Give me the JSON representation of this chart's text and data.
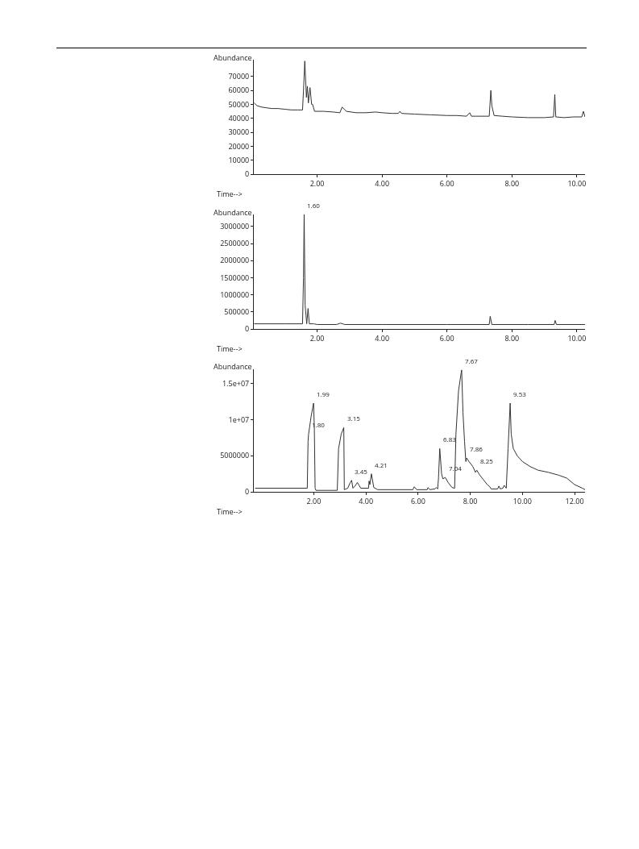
{
  "chart_data": [
    {
      "type": "line",
      "ylabel": "Abundance",
      "xlabel": "Time-->",
      "grid": false,
      "marker": "none",
      "line_style": "solid",
      "xlim": [
        0.05,
        10.25
      ],
      "ylim": [
        0,
        82000
      ],
      "xticks": [
        {
          "value": 2,
          "label": "2.00"
        },
        {
          "value": 4,
          "label": "4.00"
        },
        {
          "value": 6,
          "label": "6.00"
        },
        {
          "value": 8,
          "label": "8.00"
        },
        {
          "value": 10,
          "label": "10.00"
        }
      ],
      "yticks": [
        0,
        10000,
        20000,
        30000,
        40000,
        50000,
        60000,
        70000
      ],
      "series": [
        {
          "color": "#333333",
          "x": [
            0.06,
            0.15,
            0.3,
            0.45,
            0.6,
            0.8,
            1.0,
            1.2,
            1.4,
            1.55,
            1.58,
            1.62,
            1.67,
            1.7,
            1.73,
            1.78,
            1.83,
            1.86,
            1.92,
            2.2,
            2.5,
            2.7,
            2.77,
            2.9,
            3.2,
            3.5,
            3.8,
            4.0,
            4.3,
            4.5,
            4.55,
            4.6,
            5.0,
            5.5,
            6.0,
            6.3,
            6.6,
            6.7,
            6.75,
            7.0,
            7.3,
            7.35,
            7.38,
            7.45,
            7.7,
            8.0,
            8.5,
            9.0,
            9.28,
            9.32,
            9.35,
            9.6,
            9.9,
            10.15,
            10.2,
            10.25
          ],
          "values": [
            51000,
            49000,
            48000,
            47500,
            47000,
            47000,
            46500,
            46000,
            46000,
            46000,
            60000,
            81000,
            55000,
            63000,
            51000,
            62000,
            50000,
            50000,
            45000,
            45000,
            44500,
            44000,
            48000,
            45000,
            44000,
            44000,
            44500,
            44000,
            43500,
            43500,
            45000,
            43500,
            43000,
            42500,
            42000,
            42000,
            41500,
            44000,
            41500,
            41500,
            41500,
            60000,
            49000,
            42000,
            41500,
            41000,
            40500,
            40500,
            41000,
            57000,
            41000,
            40500,
            41000,
            41000,
            45000,
            41000
          ]
        }
      ]
    },
    {
      "type": "line",
      "ylabel": "Abundance",
      "xlabel": "Time-->",
      "grid": false,
      "marker": "none",
      "line_style": "solid",
      "xlim": [
        0.05,
        10.25
      ],
      "ylim": [
        0,
        3350000
      ],
      "xticks": [
        {
          "value": 2,
          "label": "2.00"
        },
        {
          "value": 4,
          "label": "4.00"
        },
        {
          "value": 6,
          "label": "6.00"
        },
        {
          "value": 8,
          "label": "8.00"
        },
        {
          "value": 10,
          "label": "10.00"
        }
      ],
      "yticks": [
        0,
        500000,
        1000000,
        1500000,
        2000000,
        2500000,
        3000000
      ],
      "annotations": [
        {
          "text": "1.60",
          "x": 1.6,
          "y": 3350000
        }
      ],
      "series": [
        {
          "color": "#333333",
          "x": [
            0.06,
            0.5,
            1.0,
            1.55,
            1.58,
            1.6,
            1.63,
            1.68,
            1.72,
            1.76,
            1.9,
            2.0,
            2.6,
            2.72,
            2.85,
            4.0,
            6.0,
            7.3,
            7.33,
            7.38,
            8.5,
            9.3,
            9.33,
            9.37,
            10.25
          ],
          "values": [
            150000,
            150000,
            150000,
            150000,
            1500000,
            3350000,
            700000,
            150000,
            600000,
            150000,
            150000,
            130000,
            130000,
            170000,
            130000,
            130000,
            130000,
            130000,
            370000,
            130000,
            130000,
            130000,
            250000,
            130000,
            130000
          ]
        }
      ]
    },
    {
      "type": "line",
      "ylabel": "Abundance",
      "xlabel": "Time-->",
      "grid": false,
      "marker": "none",
      "line_style": "solid",
      "xlim": [
        -0.3,
        12.4
      ],
      "ylim": [
        0,
        17000000
      ],
      "xticks": [
        {
          "value": 2,
          "label": "2.00"
        },
        {
          "value": 4,
          "label": "4.00"
        },
        {
          "value": 6,
          "label": "6.00"
        },
        {
          "value": 8,
          "label": "8.00"
        },
        {
          "value": 10,
          "label": "10.00"
        },
        {
          "value": 12,
          "label": "12.00"
        }
      ],
      "yticks": [
        0,
        5000000,
        {
          "value": 10000000,
          "label": "1e+07"
        },
        {
          "value": 15000000,
          "label": "1.5e+07"
        }
      ],
      "annotations": [
        {
          "text": "1.80",
          "x": 1.8,
          "y": 8000000
        },
        {
          "text": "1.99",
          "x": 1.99,
          "y": 12300000
        },
        {
          "text": "3.15",
          "x": 3.15,
          "y": 8900000
        },
        {
          "text": "3.45",
          "x": 3.45,
          "y": 1600000
        },
        {
          "text": "4.21",
          "x": 4.21,
          "y": 2500000
        },
        {
          "text": "6.83",
          "x": 6.83,
          "y": 6000000
        },
        {
          "text": "7.04",
          "x": 7.04,
          "y": 2000000
        },
        {
          "text": "7.67",
          "x": 7.67,
          "y": 16900000
        },
        {
          "text": "7.86",
          "x": 7.86,
          "y": 4700000
        },
        {
          "text": "8.25",
          "x": 8.25,
          "y": 3000000
        },
        {
          "text": "9.53",
          "x": 9.53,
          "y": 12300000
        }
      ],
      "series": [
        {
          "color": "#333333",
          "x": [
            -0.25,
            1.0,
            1.75,
            1.78,
            1.8,
            1.9,
            1.99,
            2.02,
            2.05,
            2.08,
            2.9,
            2.95,
            3.05,
            3.15,
            3.17,
            3.3,
            3.4,
            3.45,
            3.5,
            3.6,
            3.67,
            3.8,
            4.1,
            4.12,
            4.15,
            4.21,
            4.3,
            4.45,
            5.8,
            5.85,
            5.95,
            6.35,
            6.38,
            6.45,
            6.65,
            6.7,
            6.75,
            6.78,
            6.83,
            6.9,
            6.95,
            7.04,
            7.15,
            7.3,
            7.4,
            7.45,
            7.55,
            7.65,
            7.67,
            7.72,
            7.78,
            7.83,
            7.86,
            7.95,
            8.1,
            8.2,
            8.25,
            8.35,
            8.5,
            8.65,
            8.75,
            8.8,
            9.05,
            9.1,
            9.15,
            9.25,
            9.3,
            9.38,
            9.45,
            9.53,
            9.57,
            9.65,
            9.8,
            10.0,
            10.3,
            10.6,
            11.0,
            11.4,
            11.7,
            12.0,
            12.3,
            12.4
          ],
          "values": [
            500000,
            500000,
            500000,
            7000000,
            8000000,
            10500000,
            12300000,
            9000000,
            500000,
            200000,
            200000,
            6000000,
            8000000,
            8900000,
            300000,
            500000,
            1300000,
            1600000,
            500000,
            900000,
            1300000,
            500000,
            500000,
            1500000,
            1000000,
            2500000,
            600000,
            300000,
            300000,
            700000,
            300000,
            300000,
            600000,
            300000,
            400000,
            600000,
            400000,
            1800000,
            6000000,
            2500000,
            1800000,
            2000000,
            1300000,
            600000,
            500000,
            8000000,
            14000000,
            16500000,
            16900000,
            11000000,
            7000000,
            4200000,
            4700000,
            4200000,
            3500000,
            2700000,
            3000000,
            2400000,
            1700000,
            1000000,
            700000,
            400000,
            400000,
            800000,
            400000,
            500000,
            900000,
            500000,
            6000000,
            12300000,
            8000000,
            6000000,
            5000000,
            4200000,
            3500000,
            3000000,
            2700000,
            2300000,
            1900000,
            1000000,
            500000,
            300000
          ]
        }
      ]
    }
  ]
}
